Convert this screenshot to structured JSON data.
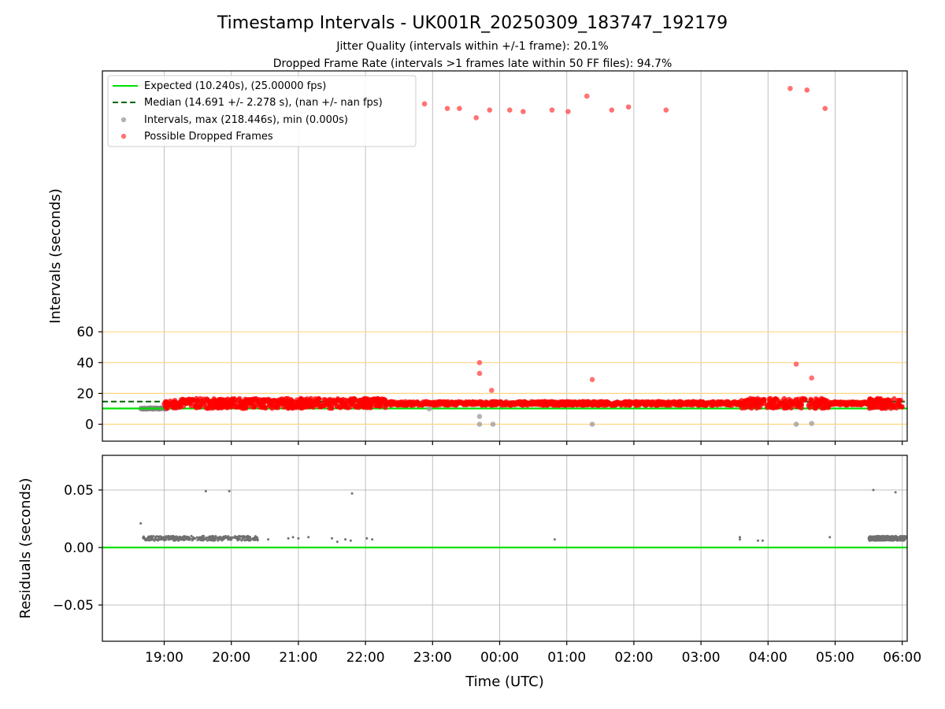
{
  "chart_data": {
    "title": "Timestamp Intervals - UK001R_20250309_183747_192179",
    "subtitles": [
      "Jitter Quality (intervals within +/-1 frame): 20.1%",
      "Dropped Frame Rate (intervals >1 frames late within 50 FF files): 94.7%"
    ],
    "xlabel": "Time (UTC)",
    "x_ticks": [
      "19:00",
      "20:00",
      "21:00",
      "22:00",
      "23:00",
      "00:00",
      "01:00",
      "02:00",
      "03:00",
      "04:00",
      "05:00",
      "06:00"
    ],
    "panels": [
      {
        "type": "scatter",
        "ylabel": "Intervals (seconds)",
        "y_ticks": [
          0,
          20,
          40,
          60
        ],
        "y_gridlines": [
          0,
          20,
          40,
          60
        ],
        "y_gridline_color": "#ffd580",
        "legend_position": "upper-left",
        "legend": [
          {
            "label": "Expected (10.240s), (25.00000 fps)",
            "style": "solid-line",
            "color": "#00e000"
          },
          {
            "label": "Median (14.691 +/- 2.278 s), (nan +/- nan fps)",
            "style": "dashed-line",
            "color": "#006400"
          },
          {
            "label": "Intervals, max (218.446s), min (0.000s)",
            "style": "marker",
            "color": "#a0a0a0"
          },
          {
            "label": "Possible Dropped Frames",
            "style": "marker",
            "color": "#ff5050"
          }
        ],
        "lines": [
          {
            "name": "expected",
            "y": 10.24,
            "color": "#00e000",
            "style": "solid"
          },
          {
            "name": "median",
            "y": 14.691,
            "color": "#006400",
            "style": "dashed"
          }
        ],
        "dropped_band": {
          "x_range_hours": [
            19.0,
            30.0
          ],
          "y_mean": 13.5,
          "y_spread": 3.2,
          "color": "#ff0000"
        },
        "interval_band": {
          "x_range_hours": [
            18.65,
            19.05
          ],
          "y": 10.24,
          "color": "#808080"
        },
        "outliers_dropped": [
          {
            "x": 22.88,
            "y": 208
          },
          {
            "x": 23.22,
            "y": 205
          },
          {
            "x": 23.4,
            "y": 205
          },
          {
            "x": 23.65,
            "y": 199
          },
          {
            "x": 23.85,
            "y": 204
          },
          {
            "x": 24.15,
            "y": 204
          },
          {
            "x": 24.35,
            "y": 203
          },
          {
            "x": 24.78,
            "y": 204
          },
          {
            "x": 25.02,
            "y": 203
          },
          {
            "x": 25.3,
            "y": 213
          },
          {
            "x": 25.67,
            "y": 204
          },
          {
            "x": 25.92,
            "y": 206
          },
          {
            "x": 26.48,
            "y": 204
          },
          {
            "x": 28.33,
            "y": 218
          },
          {
            "x": 28.58,
            "y": 217
          },
          {
            "x": 28.85,
            "y": 205
          },
          {
            "x": 23.7,
            "y": 40
          },
          {
            "x": 23.7,
            "y": 33
          },
          {
            "x": 23.88,
            "y": 22
          },
          {
            "x": 25.38,
            "y": 29
          },
          {
            "x": 28.42,
            "y": 39
          },
          {
            "x": 28.65,
            "y": 30
          }
        ],
        "outliers_intervals": [
          {
            "x": 22.95,
            "y": 10
          },
          {
            "x": 23.7,
            "y": 5
          },
          {
            "x": 23.7,
            "y": 0
          },
          {
            "x": 23.9,
            "y": 0
          },
          {
            "x": 25.38,
            "y": 0
          },
          {
            "x": 28.42,
            "y": 0
          },
          {
            "x": 28.65,
            "y": 0.5
          }
        ]
      },
      {
        "type": "scatter",
        "ylabel": "Residuals (seconds)",
        "y_ticks": [
          "−0.05",
          "0.00",
          "0.05"
        ],
        "ylim": [
          -0.08,
          0.08
        ],
        "reference_line": {
          "y": 0.0,
          "color": "#00e000"
        },
        "residual_clusters": [
          {
            "x_range_hours": [
              18.68,
              20.4
            ],
            "y": 0.008
          },
          {
            "x_range_hours": [
              29.5,
              30.05
            ],
            "y": 0.008
          }
        ],
        "residual_points": [
          {
            "x": 18.65,
            "y": 0.021
          },
          {
            "x": 19.62,
            "y": 0.049
          },
          {
            "x": 19.97,
            "y": 0.049
          },
          {
            "x": 21.8,
            "y": 0.047
          },
          {
            "x": 29.57,
            "y": 0.05
          },
          {
            "x": 29.9,
            "y": 0.048
          },
          {
            "x": 20.55,
            "y": 0.007
          },
          {
            "x": 20.85,
            "y": 0.008
          },
          {
            "x": 20.92,
            "y": 0.009
          },
          {
            "x": 21.0,
            "y": 0.008
          },
          {
            "x": 21.15,
            "y": 0.009
          },
          {
            "x": 21.5,
            "y": 0.008
          },
          {
            "x": 21.58,
            "y": 0.005
          },
          {
            "x": 21.7,
            "y": 0.007
          },
          {
            "x": 21.78,
            "y": 0.006
          },
          {
            "x": 22.02,
            "y": 0.008
          },
          {
            "x": 22.1,
            "y": 0.007
          },
          {
            "x": 24.82,
            "y": 0.007
          },
          {
            "x": 27.58,
            "y": 0.009
          },
          {
            "x": 27.58,
            "y": 0.007
          },
          {
            "x": 27.85,
            "y": 0.006
          },
          {
            "x": 27.92,
            "y": 0.006
          },
          {
            "x": 28.92,
            "y": 0.009
          }
        ]
      }
    ]
  }
}
